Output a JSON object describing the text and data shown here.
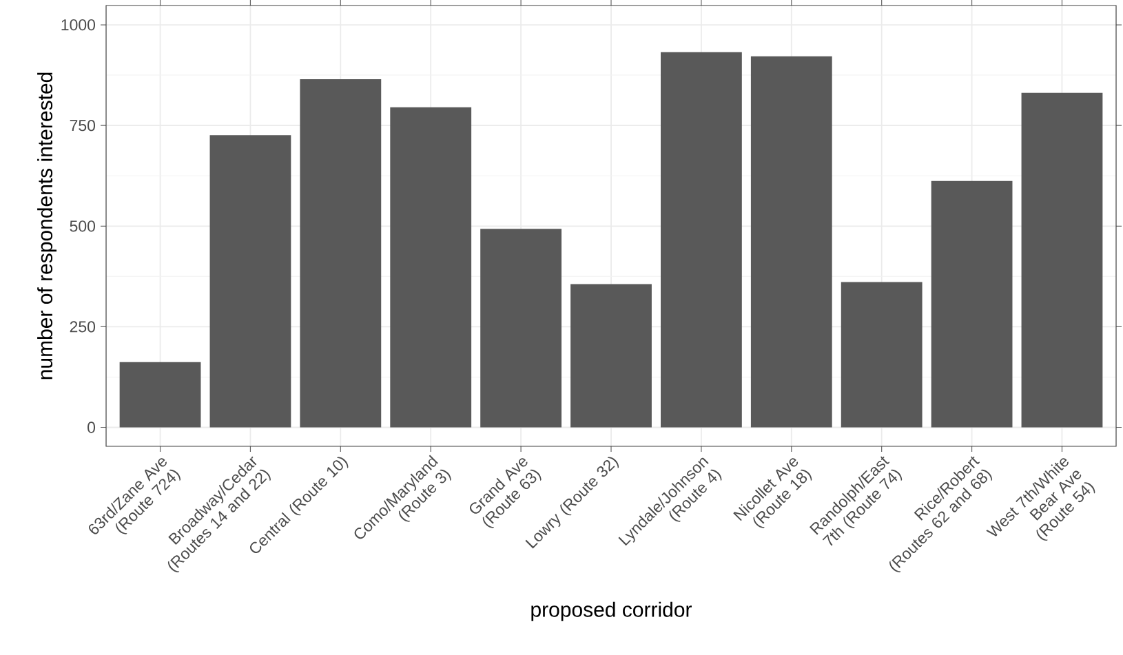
{
  "chart_data": {
    "type": "bar",
    "xlabel": "proposed corridor",
    "ylabel": "number of respondents interested",
    "categories": [
      "63rd/Zane Ave (Route 724)",
      "Broadway/Cedar (Routes 14 and 22)",
      "Central (Route 10)",
      "Como/Maryland (Route 3)",
      "Grand Ave (Route 63)",
      "Lowry (Route 32)",
      "Lyndale/Johnson (Route 4)",
      "Nicollet Ave (Route 18)",
      "Randolph/East 7th (Route 74)",
      "Rice/Robert (Routes 62 and 68)",
      "West 7th/White Bear Ave (Route 54)"
    ],
    "values": [
      162,
      726,
      865,
      795,
      493,
      356,
      932,
      922,
      361,
      612,
      831
    ],
    "color": "#595959",
    "ylim": [
      -47,
      1048
    ],
    "yticks": [
      0,
      250,
      500,
      750,
      1000
    ],
    "grid": true
  }
}
